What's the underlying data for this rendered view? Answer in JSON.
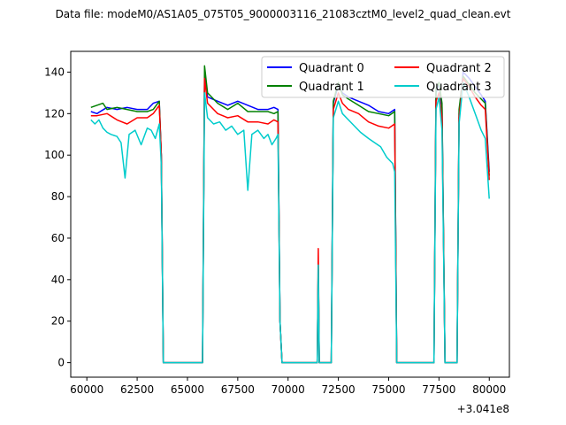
{
  "chart_data": {
    "type": "line",
    "title": "Data file: modeM0/AS1A05_075T05_9000003116_21083cztM0_level2_quad_clean.evt",
    "xlabel": "",
    "ylabel": "",
    "x_offset_label": "+3.041e8",
    "xlim": [
      59200,
      81000
    ],
    "ylim": [
      -7,
      150
    ],
    "x_ticks": [
      60000,
      62500,
      65000,
      67500,
      70000,
      72500,
      75000,
      77500,
      80000
    ],
    "x_tick_labels": [
      "60000",
      "62500",
      "65000",
      "67500",
      "70000",
      "72500",
      "75000",
      "77500",
      "80000"
    ],
    "y_ticks": [
      0,
      20,
      40,
      60,
      80,
      100,
      120,
      140
    ],
    "y_tick_labels": [
      "0",
      "20",
      "40",
      "60",
      "80",
      "100",
      "120",
      "140"
    ],
    "grid": false,
    "legend": {
      "placement": "top-right",
      "columns": 2
    },
    "series": [
      {
        "name": "Quadrant 0",
        "color": "#0000ff",
        "points": [
          [
            60200,
            121
          ],
          [
            60500,
            120
          ],
          [
            61000,
            123
          ],
          [
            61500,
            122
          ],
          [
            62000,
            123
          ],
          [
            62500,
            122
          ],
          [
            63000,
            122
          ],
          [
            63300,
            125
          ],
          [
            63600,
            126
          ],
          [
            63700,
            100
          ],
          [
            63800,
            0
          ],
          [
            65750,
            0
          ],
          [
            65850,
            140
          ],
          [
            66000,
            128
          ],
          [
            66500,
            126
          ],
          [
            67000,
            124
          ],
          [
            67500,
            126
          ],
          [
            68000,
            124
          ],
          [
            68500,
            122
          ],
          [
            69000,
            122
          ],
          [
            69300,
            123
          ],
          [
            69500,
            122
          ],
          [
            69600,
            20
          ],
          [
            69700,
            0
          ],
          [
            71450,
            0
          ],
          [
            71500,
            45
          ],
          [
            71550,
            0
          ],
          [
            72150,
            0
          ],
          [
            72250,
            125
          ],
          [
            72500,
            134
          ],
          [
            72700,
            130
          ],
          [
            73000,
            128
          ],
          [
            73500,
            126
          ],
          [
            74000,
            124
          ],
          [
            74500,
            121
          ],
          [
            75000,
            120
          ],
          [
            75300,
            122
          ],
          [
            75400,
            0
          ],
          [
            77250,
            0
          ],
          [
            77350,
            130
          ],
          [
            77500,
            135
          ],
          [
            77650,
            123
          ],
          [
            77800,
            0
          ],
          [
            78400,
            0
          ],
          [
            78500,
            120
          ],
          [
            78700,
            140
          ],
          [
            79000,
            137
          ],
          [
            79300,
            133
          ],
          [
            79600,
            129
          ],
          [
            79800,
            126
          ],
          [
            80000,
            92
          ]
        ]
      },
      {
        "name": "Quadrant 1",
        "color": "#008000",
        "points": [
          [
            60200,
            123
          ],
          [
            60500,
            124
          ],
          [
            60800,
            125
          ],
          [
            61000,
            122
          ],
          [
            61500,
            123
          ],
          [
            62000,
            122
          ],
          [
            62500,
            121
          ],
          [
            63000,
            121
          ],
          [
            63300,
            122
          ],
          [
            63600,
            126
          ],
          [
            63700,
            100
          ],
          [
            63800,
            0
          ],
          [
            65750,
            0
          ],
          [
            65850,
            143
          ],
          [
            66000,
            130
          ],
          [
            66500,
            125
          ],
          [
            67000,
            122
          ],
          [
            67500,
            125
          ],
          [
            68000,
            121
          ],
          [
            68500,
            121
          ],
          [
            69000,
            121
          ],
          [
            69300,
            120
          ],
          [
            69500,
            121
          ],
          [
            69600,
            20
          ],
          [
            69700,
            0
          ],
          [
            71450,
            0
          ],
          [
            71500,
            47
          ],
          [
            71550,
            0
          ],
          [
            72150,
            0
          ],
          [
            72250,
            126
          ],
          [
            72500,
            135
          ],
          [
            72700,
            129
          ],
          [
            73000,
            127
          ],
          [
            73500,
            124
          ],
          [
            74000,
            121
          ],
          [
            74500,
            120
          ],
          [
            75000,
            119
          ],
          [
            75300,
            121
          ],
          [
            75400,
            0
          ],
          [
            77250,
            0
          ],
          [
            77350,
            132
          ],
          [
            77500,
            135
          ],
          [
            77650,
            125
          ],
          [
            77800,
            0
          ],
          [
            78400,
            0
          ],
          [
            78500,
            122
          ],
          [
            78700,
            138
          ],
          [
            79000,
            134
          ],
          [
            79300,
            130
          ],
          [
            79600,
            127
          ],
          [
            79800,
            125
          ],
          [
            80000,
            90
          ]
        ]
      },
      {
        "name": "Quadrant 2",
        "color": "#ff0000",
        "points": [
          [
            60200,
            119
          ],
          [
            60500,
            119
          ],
          [
            61000,
            120
          ],
          [
            61500,
            117
          ],
          [
            62000,
            115
          ],
          [
            62500,
            118
          ],
          [
            63000,
            118
          ],
          [
            63300,
            120
          ],
          [
            63600,
            124
          ],
          [
            63700,
            100
          ],
          [
            63800,
            0
          ],
          [
            65750,
            0
          ],
          [
            65850,
            137
          ],
          [
            66000,
            125
          ],
          [
            66500,
            120
          ],
          [
            67000,
            118
          ],
          [
            67500,
            119
          ],
          [
            68000,
            116
          ],
          [
            68500,
            116
          ],
          [
            69000,
            115
          ],
          [
            69300,
            117
          ],
          [
            69500,
            116
          ],
          [
            69600,
            20
          ],
          [
            69700,
            0
          ],
          [
            71450,
            0
          ],
          [
            71500,
            55
          ],
          [
            71550,
            0
          ],
          [
            72150,
            0
          ],
          [
            72250,
            122
          ],
          [
            72500,
            130
          ],
          [
            72700,
            125
          ],
          [
            73000,
            122
          ],
          [
            73500,
            120
          ],
          [
            74000,
            116
          ],
          [
            74500,
            114
          ],
          [
            75000,
            113
          ],
          [
            75300,
            115
          ],
          [
            75400,
            0
          ],
          [
            77250,
            0
          ],
          [
            77350,
            126
          ],
          [
            77500,
            130
          ],
          [
            77650,
            118
          ],
          [
            77800,
            0
          ],
          [
            78400,
            0
          ],
          [
            78500,
            118
          ],
          [
            78700,
            137
          ],
          [
            79000,
            133
          ],
          [
            79300,
            128
          ],
          [
            79600,
            124
          ],
          [
            79800,
            122
          ],
          [
            80000,
            88
          ]
        ]
      },
      {
        "name": "Quadrant 3",
        "color": "#00cccc",
        "points": [
          [
            60200,
            117
          ],
          [
            60400,
            115
          ],
          [
            60600,
            117
          ],
          [
            60800,
            113
          ],
          [
            61000,
            111
          ],
          [
            61200,
            110
          ],
          [
            61500,
            109
          ],
          [
            61700,
            106
          ],
          [
            61900,
            89
          ],
          [
            62100,
            110
          ],
          [
            62400,
            112
          ],
          [
            62700,
            105
          ],
          [
            63000,
            113
          ],
          [
            63200,
            112
          ],
          [
            63400,
            108
          ],
          [
            63600,
            115
          ],
          [
            63700,
            95
          ],
          [
            63800,
            0
          ],
          [
            65750,
            0
          ],
          [
            65850,
            130
          ],
          [
            66000,
            118
          ],
          [
            66300,
            115
          ],
          [
            66600,
            116
          ],
          [
            66900,
            112
          ],
          [
            67200,
            114
          ],
          [
            67500,
            110
          ],
          [
            67800,
            112
          ],
          [
            68000,
            83
          ],
          [
            68200,
            110
          ],
          [
            68500,
            112
          ],
          [
            68800,
            108
          ],
          [
            69000,
            110
          ],
          [
            69200,
            105
          ],
          [
            69400,
            108
          ],
          [
            69500,
            110
          ],
          [
            69600,
            20
          ],
          [
            69700,
            0
          ],
          [
            71450,
            0
          ],
          [
            71500,
            47
          ],
          [
            71550,
            0
          ],
          [
            72150,
            0
          ],
          [
            72250,
            118
          ],
          [
            72500,
            126
          ],
          [
            72700,
            120
          ],
          [
            73000,
            117
          ],
          [
            73300,
            114
          ],
          [
            73600,
            111
          ],
          [
            74000,
            108
          ],
          [
            74300,
            106
          ],
          [
            74600,
            104
          ],
          [
            74900,
            99
          ],
          [
            75200,
            96
          ],
          [
            75300,
            92
          ],
          [
            75400,
            0
          ],
          [
            77250,
            0
          ],
          [
            77350,
            122
          ],
          [
            77500,
            128
          ],
          [
            77650,
            112
          ],
          [
            77800,
            0
          ],
          [
            78400,
            0
          ],
          [
            78500,
            115
          ],
          [
            78700,
            135
          ],
          [
            79000,
            128
          ],
          [
            79300,
            120
          ],
          [
            79600,
            112
          ],
          [
            79800,
            108
          ],
          [
            80000,
            79
          ]
        ]
      }
    ]
  }
}
